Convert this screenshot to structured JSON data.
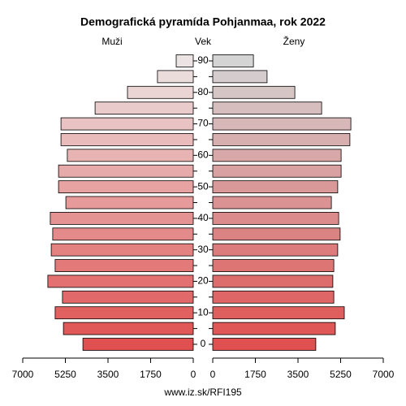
{
  "chart_data": {
    "type": "pyramid",
    "title": "Demografická pyramída Pohjanmaa, rok 2022",
    "center_label": "Vek",
    "source": "www.iz.sk/RFI195",
    "categories": [
      0,
      null,
      10,
      null,
      20,
      null,
      30,
      null,
      40,
      null,
      50,
      null,
      60,
      null,
      70,
      null,
      80,
      null,
      90
    ],
    "xlim": [
      0,
      7000
    ],
    "xticks": [
      0,
      1750,
      3500,
      5250,
      7000
    ],
    "series": [
      {
        "name": "Muži",
        "side": "left",
        "values": [
          4530,
          5330,
          5670,
          5370,
          5970,
          5670,
          5830,
          5770,
          5870,
          5230,
          5530,
          5530,
          5170,
          5430,
          5430,
          4030,
          2700,
          1470,
          700
        ],
        "colors": [
          "#e05050",
          "#e15858",
          "#e16060",
          "#e26969",
          "#e37171",
          "#e37979",
          "#e48181",
          "#e58a8a",
          "#e59292",
          "#e69a9a",
          "#e7a2a2",
          "#e7aaaa",
          "#e8b3b3",
          "#e9bbbb",
          "#e9c3c3",
          "#eacbcb",
          "#ebd4d4",
          "#ebdcdc",
          "#ece4e4"
        ]
      },
      {
        "name": "Ženy",
        "side": "right",
        "values": [
          4230,
          5030,
          5400,
          4970,
          4930,
          4970,
          5130,
          5230,
          5170,
          4870,
          5130,
          5270,
          5270,
          5630,
          5670,
          4470,
          3370,
          2230,
          1670
        ],
        "colors": [
          "#e05050",
          "#df5757",
          "#df5f5f",
          "#de6666",
          "#dd6d6d",
          "#dd7575",
          "#dc7c7c",
          "#db8383",
          "#db8b8b",
          "#da9292",
          "#d99999",
          "#d9a1a1",
          "#d8a8a8",
          "#d7afaf",
          "#d7b7b7",
          "#d6bebe",
          "#d5c5c5",
          "#d5cdcd",
          "#d4d4d4"
        ]
      }
    ]
  }
}
